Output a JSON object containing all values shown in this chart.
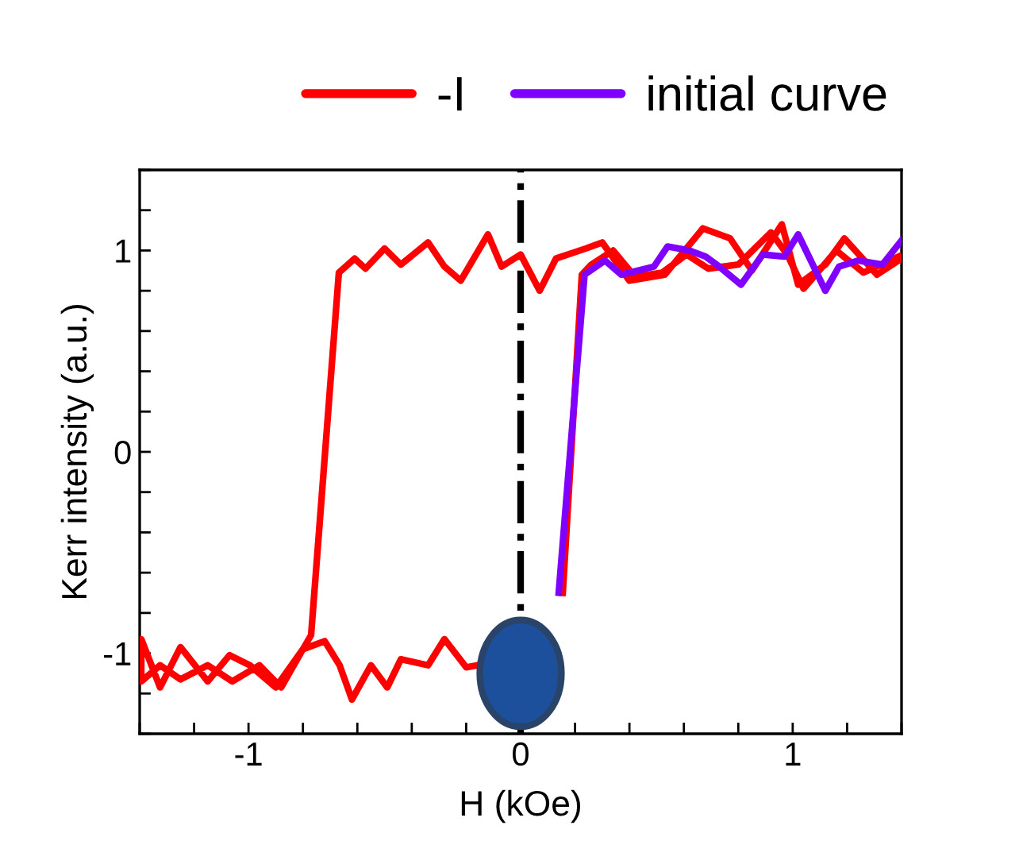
{
  "chart_data": {
    "type": "line",
    "xlabel": "H (kOe)",
    "ylabel": "Kerr intensity (a.u.)",
    "xlim": [
      -1.4,
      1.4
    ],
    "ylim": [
      -1.4,
      1.4
    ],
    "xticks": [
      {
        "value": -1.4,
        "label": null
      },
      {
        "value": -1.2,
        "label": null
      },
      -1,
      {
        "value": -0.8,
        "label": null
      },
      {
        "value": -0.6,
        "label": null
      },
      {
        "value": -0.4,
        "label": null
      },
      {
        "value": -0.2,
        "label": null
      },
      0,
      {
        "value": 0.2,
        "label": null
      },
      {
        "value": 0.4,
        "label": null
      },
      {
        "value": 0.6,
        "label": null
      },
      {
        "value": 0.8,
        "label": null
      },
      1,
      {
        "value": 1.2,
        "label": null
      },
      {
        "value": 1.4,
        "label": null
      }
    ],
    "yticks": [
      {
        "value": -1.4,
        "label": null
      },
      {
        "value": -1.2,
        "label": null
      },
      -1,
      {
        "value": -0.8,
        "label": null
      },
      {
        "value": -0.6,
        "label": null
      },
      {
        "value": -0.4,
        "label": null
      },
      {
        "value": -0.2,
        "label": null
      },
      0,
      {
        "value": 0.2,
        "label": null
      },
      {
        "value": 0.4,
        "label": null
      },
      {
        "value": 0.6,
        "label": null
      },
      {
        "value": 0.8,
        "label": null
      },
      1,
      {
        "value": 1.2,
        "label": null
      },
      {
        "value": 1.4,
        "label": null
      }
    ],
    "grid": false,
    "legend": "top",
    "marker": "none",
    "line_style": "solid",
    "ref_lines": [
      {
        "axis": "x",
        "value": 0,
        "color": "#000000",
        "line_style": "dashdot"
      }
    ],
    "series": [
      {
        "name": "-I",
        "color": "#ff0000",
        "x": [
          1.4,
          1.31,
          1.19,
          1.12,
          1.02,
          0.96,
          0.85,
          0.77,
          0.67,
          0.53,
          0.4,
          0.3,
          0.24,
          0.13,
          0.07,
          0.0,
          -0.07,
          -0.12,
          -0.22,
          -0.28,
          -0.34,
          -0.44,
          -0.5,
          -0.57,
          -0.61,
          -0.668,
          -0.77,
          -0.8,
          -0.88,
          -0.96,
          -1.06,
          -1.15,
          -1.25,
          -1.325,
          -1.394,
          -1.394,
          -1.325,
          -1.25,
          -1.15,
          -1.07,
          -0.995,
          -0.9,
          -0.8,
          -0.72,
          -0.665,
          -0.62,
          -0.55,
          -0.49,
          -0.44,
          -0.34,
          -0.28,
          -0.2,
          -0.16,
          0.0,
          0.11,
          0.155,
          0.225,
          0.26,
          0.34,
          0.42,
          0.52,
          0.61,
          0.69,
          0.8,
          0.92,
          0.98,
          1.04,
          1.16,
          1.26,
          1.39
        ],
        "values": [
          0.96,
          0.88,
          1.06,
          0.93,
          0.83,
          1.13,
          0.9,
          1.06,
          1.11,
          0.88,
          0.85,
          1.04,
          1.01,
          0.96,
          0.8,
          0.98,
          0.92,
          1.08,
          0.85,
          0.92,
          1.04,
          0.93,
          1.01,
          0.91,
          0.96,
          0.89,
          -0.91,
          -0.98,
          -1.17,
          -1.06,
          -1.14,
          -1.06,
          -1.13,
          -1.06,
          -1.14,
          -0.93,
          -1.17,
          -0.97,
          -1.14,
          -1.01,
          -1.06,
          -1.17,
          -0.98,
          -0.94,
          -1.06,
          -1.23,
          -1.06,
          -1.17,
          -1.03,
          -1.06,
          -0.93,
          -1.07,
          -1.06,
          null,
          null,
          -0.7,
          0.88,
          0.93,
          1.0,
          0.87,
          0.89,
          0.98,
          0.91,
          0.93,
          1.09,
          0.98,
          0.81,
          1.0,
          0.89,
          0.97
        ]
      },
      {
        "name": "initial curve",
        "color": "#7f00ff",
        "x": [
          0.14,
          0.235,
          0.31,
          0.37,
          0.49,
          0.54,
          0.62,
          0.68,
          0.73,
          0.81,
          0.89,
          0.97,
          1.02,
          1.12,
          1.17,
          1.24,
          1.33,
          1.4
        ],
        "values": [
          -0.7,
          0.88,
          0.95,
          0.88,
          0.92,
          1.02,
          1.0,
          0.97,
          0.92,
          0.83,
          0.98,
          0.97,
          1.08,
          0.8,
          0.92,
          0.95,
          0.93,
          1.05
        ]
      }
    ]
  }
}
